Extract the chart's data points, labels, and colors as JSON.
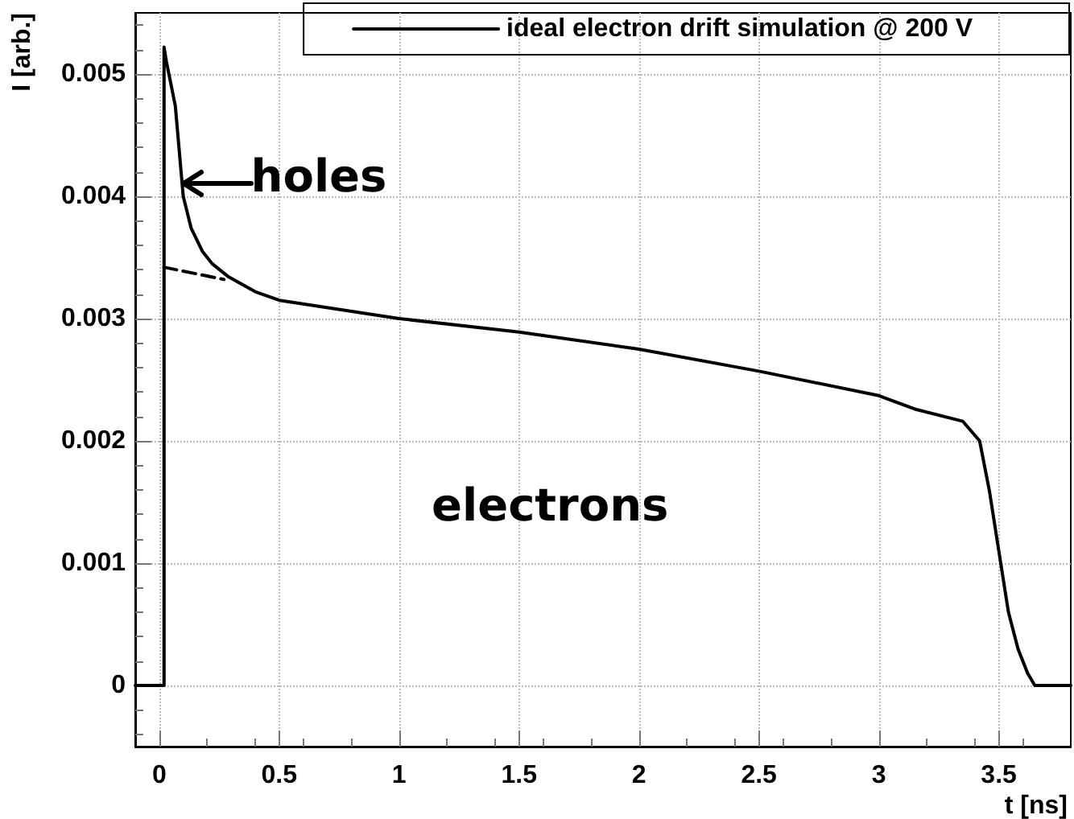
{
  "chart_data": {
    "type": "line",
    "xlabel": "t [ns]",
    "ylabel": "I [arb.]",
    "xlim": [
      -0.1,
      3.8
    ],
    "xticks": [
      0,
      0.5,
      1,
      1.5,
      2,
      2.5,
      3,
      3.5
    ],
    "ylim": [
      -0.0005,
      0.0055
    ],
    "yticks": [
      0,
      0.001,
      0.002,
      0.003,
      0.004,
      0.005
    ],
    "grid": true,
    "legend": "top right",
    "marker": "none",
    "series": [
      {
        "name": "ideal electron drift simulation @ 200 V",
        "color": "#000000",
        "line_style": "solid",
        "x": [
          -0.1,
          0.02,
          0.02,
          0.03,
          0.067,
          0.1,
          0.133,
          0.18,
          0.22,
          0.29,
          0.4,
          0.5,
          1,
          1.5,
          2,
          2.5,
          3,
          3.15,
          3.35,
          3.42,
          3.46,
          3.5,
          3.54,
          3.58,
          3.62,
          3.65,
          3.8
        ],
        "values": [
          0,
          0,
          0.00522,
          0.0051,
          0.00474,
          0.004,
          0.00374,
          0.00355,
          0.00345,
          0.00334,
          0.00322,
          0.00315,
          0.003,
          0.00289,
          0.00275,
          0.00257,
          0.00237,
          0.00226,
          0.00216,
          0.002,
          0.0016,
          0.0011,
          0.0006,
          0.0003,
          0.0001,
          0,
          0
        ]
      },
      {
        "color": "#000000",
        "line_style": "dashed",
        "x": [
          0.02,
          0.27
        ],
        "values": [
          0.00342,
          0.00332
        ]
      }
    ],
    "annotations": [
      {
        "text": "holes",
        "x": 0.1,
        "y": 0.0041
      },
      "electrons"
    ]
  }
}
